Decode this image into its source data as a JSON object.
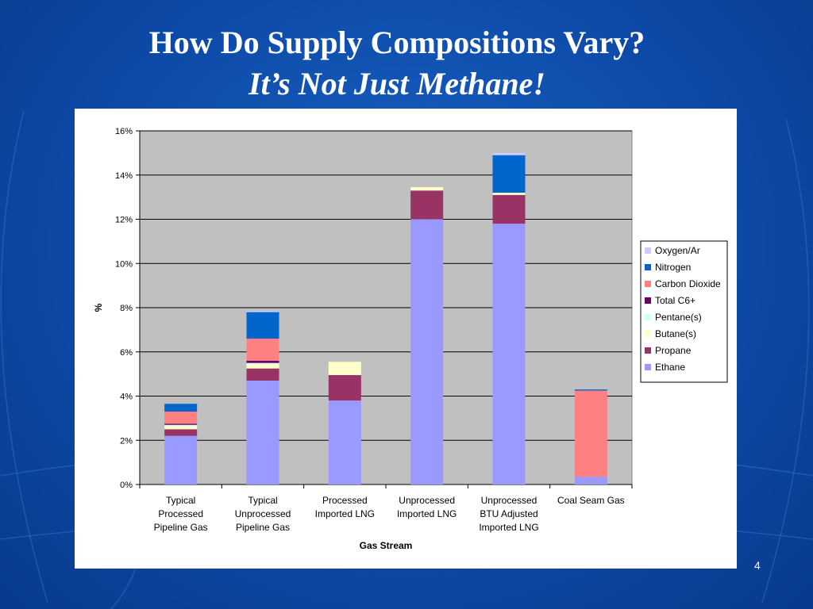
{
  "slide": {
    "title_line1": "How Do Supply Compositions Vary?",
    "title_line2": "It’s Not Just Methane!",
    "page_number": "4"
  },
  "chart_data": {
    "type": "bar",
    "stacked": true,
    "title": "",
    "xlabel": "Gas Stream",
    "ylabel": "%",
    "ylim": [
      0,
      16
    ],
    "yticks": [
      "0%",
      "2%",
      "4%",
      "6%",
      "8%",
      "10%",
      "12%",
      "14%",
      "16%"
    ],
    "grid": true,
    "legend_position": "right",
    "categories": [
      [
        "Typical",
        "Processed",
        "Pipeline Gas"
      ],
      [
        "Typical",
        "Unprocessed",
        "Pipeline Gas"
      ],
      [
        "Processed",
        "Imported LNG"
      ],
      [
        "Unprocessed",
        "Imported LNG"
      ],
      [
        "Unprocessed",
        "BTU Adjusted",
        "Imported LNG"
      ],
      [
        "Coal Seam Gas"
      ]
    ],
    "series": [
      {
        "name": "Ethane",
        "color": "#9999ff",
        "values": [
          2.2,
          4.7,
          3.8,
          12.0,
          11.8,
          0.35
        ]
      },
      {
        "name": "Propane",
        "color": "#993366",
        "values": [
          0.3,
          0.55,
          1.15,
          1.3,
          1.3,
          0.0
        ]
      },
      {
        "name": "Butane(s)",
        "color": "#ffffcc",
        "values": [
          0.15,
          0.2,
          0.6,
          0.15,
          0.1,
          0.0
        ]
      },
      {
        "name": "Pentane(s)",
        "color": "#ccffff",
        "values": [
          0.05,
          0.05,
          0.0,
          0.0,
          0.0,
          0.0
        ]
      },
      {
        "name": "Total C6+",
        "color": "#660066",
        "values": [
          0.05,
          0.1,
          0.0,
          0.0,
          0.0,
          0.0
        ]
      },
      {
        "name": "Carbon Dioxide",
        "color": "#ff8080",
        "values": [
          0.55,
          1.0,
          0.0,
          0.0,
          0.0,
          3.9
        ]
      },
      {
        "name": "Nitrogen",
        "color": "#0066cc",
        "values": [
          0.35,
          1.2,
          0.0,
          0.0,
          1.7,
          0.05
        ]
      },
      {
        "name": "Oxygen/Ar",
        "color": "#ccccff",
        "values": [
          0.0,
          0.05,
          0.0,
          0.0,
          0.1,
          0.0
        ]
      }
    ]
  }
}
